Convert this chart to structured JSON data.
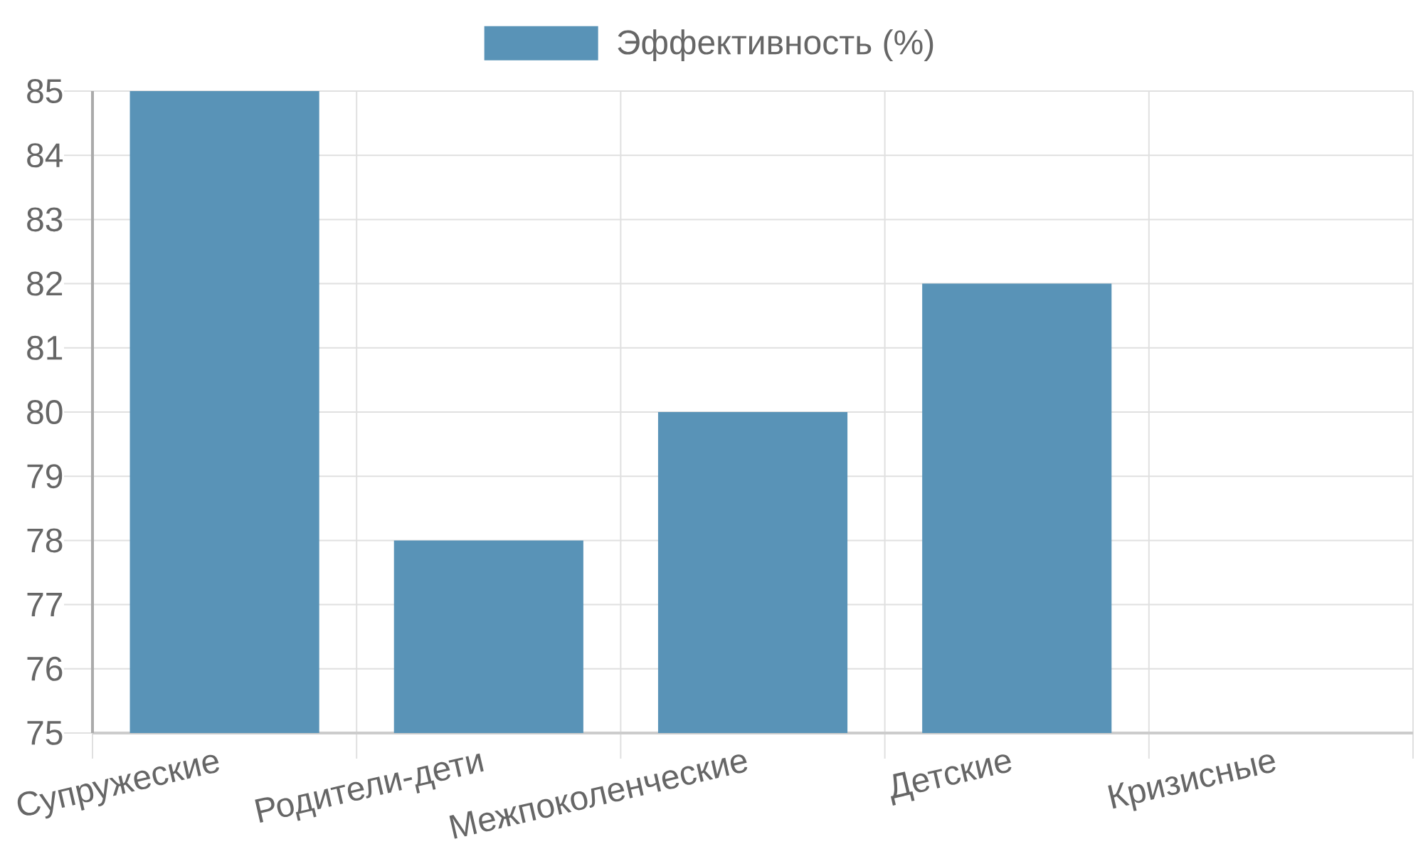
{
  "chart_data": {
    "type": "bar",
    "categories": [
      "Супружеские",
      "Родители-дети",
      "Межпоколенческие",
      "Детские",
      "Кризисные"
    ],
    "series": [
      {
        "name": "Эффективность (%)",
        "color": "#5993b7",
        "values": [
          85,
          78,
          80,
          82,
          75
        ]
      }
    ],
    "ylim": [
      75,
      85
    ],
    "yticks": [
      75,
      76,
      77,
      78,
      79,
      80,
      81,
      82,
      83,
      84,
      85
    ],
    "grid": true,
    "legend": "top"
  }
}
